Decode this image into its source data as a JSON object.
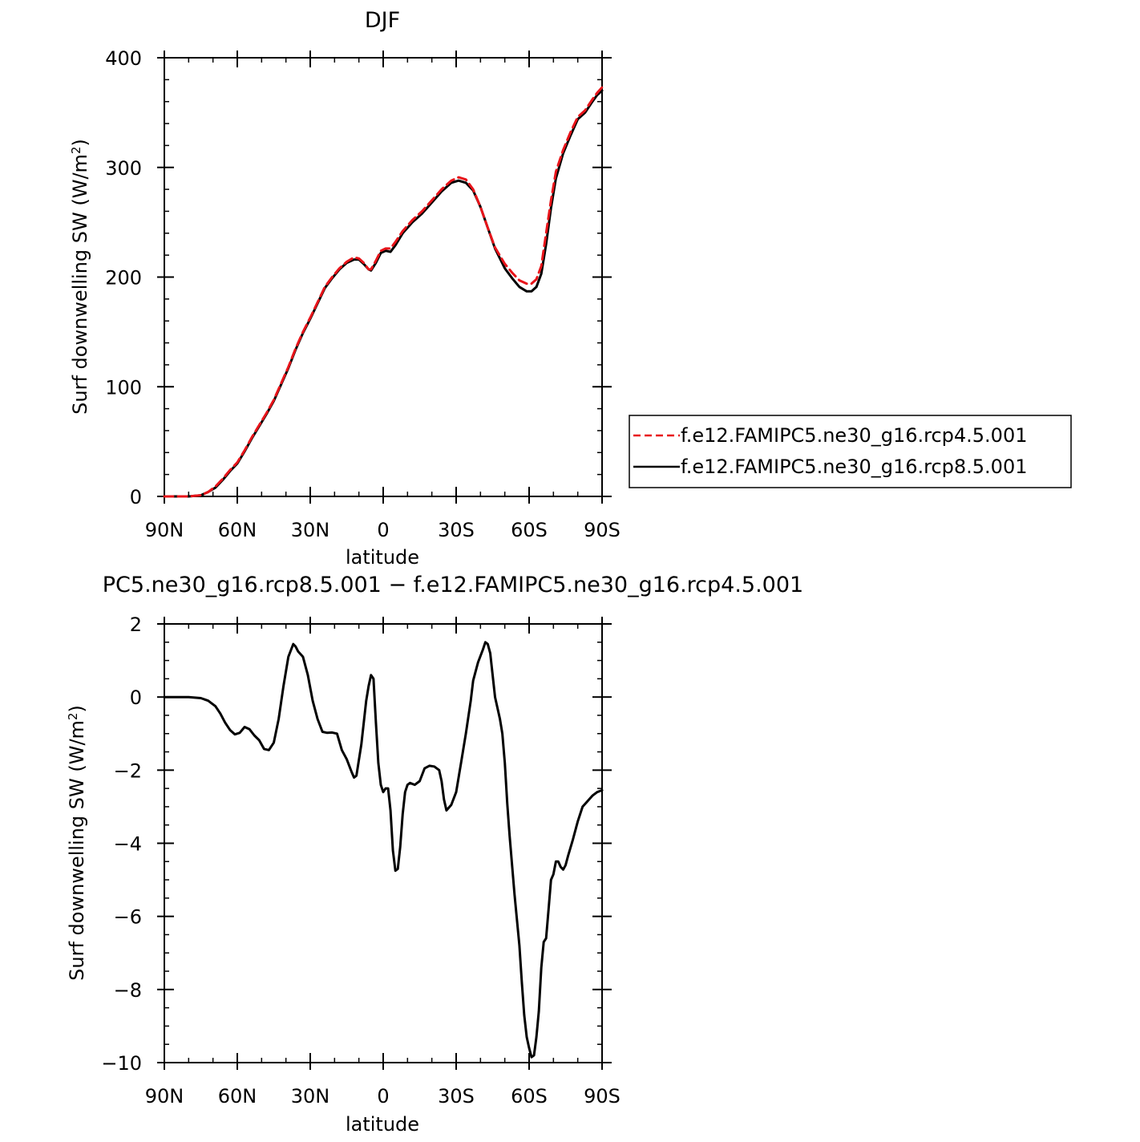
{
  "chart_data": [
    {
      "type": "line",
      "title": "DJF",
      "xlabel": "latitude",
      "ylabel": "Surf downwelling SW (W/m²)",
      "ylabel_prefix": "Surf downwelling SW (W/m",
      "ylabel_sup": "2",
      "ylabel_suffix": ")",
      "xlim": [
        90,
        -90
      ],
      "ylim": [
        0,
        400
      ],
      "xticks": [
        90,
        60,
        30,
        0,
        -30,
        -60,
        -90
      ],
      "xtick_labels": [
        "90N",
        "60N",
        "30N",
        "0",
        "30S",
        "60S",
        "90S"
      ],
      "yticks": [
        0,
        100,
        200,
        300,
        400
      ],
      "ytick_labels": [
        "0",
        "100",
        "200",
        "300",
        "400"
      ],
      "grid": false,
      "legend_position": "right",
      "series": [
        {
          "name": "f.e12.FAMIPC5.ne30_g16.rcp4.5.001",
          "color": "#e8141a",
          "dash": "dashed",
          "points": [
            [
              90,
              0
            ],
            [
              85,
              0
            ],
            [
              80,
              0
            ],
            [
              75,
              1
            ],
            [
              72,
              4
            ],
            [
              69,
              9
            ],
            [
              66,
              16
            ],
            [
              63,
              24
            ],
            [
              60,
              31
            ],
            [
              57,
              42
            ],
            [
              54,
              54
            ],
            [
              51,
              65
            ],
            [
              48,
              76
            ],
            [
              45,
              88
            ],
            [
              42,
              103
            ],
            [
              39,
              118
            ],
            [
              36,
              135
            ],
            [
              33,
              150
            ],
            [
              30,
              163
            ],
            [
              27,
              177
            ],
            [
              24,
              191
            ],
            [
              21,
              200
            ],
            [
              18,
              208
            ],
            [
              15,
              214
            ],
            [
              12,
              218
            ],
            [
              10,
              217
            ],
            [
              8,
              213
            ],
            [
              6,
              207
            ],
            [
              5,
              207
            ],
            [
              3,
              215
            ],
            [
              1,
              224
            ],
            [
              -1,
              226
            ],
            [
              -3,
              226
            ],
            [
              -5,
              232
            ],
            [
              -8,
              242
            ],
            [
              -12,
              252
            ],
            [
              -16,
              260
            ],
            [
              -20,
              270
            ],
            [
              -24,
              280
            ],
            [
              -28,
              288
            ],
            [
              -31,
              291
            ],
            [
              -34,
              289
            ],
            [
              -37,
              280
            ],
            [
              -40,
              264
            ],
            [
              -43,
              245
            ],
            [
              -46,
              227
            ],
            [
              -50,
              212
            ],
            [
              -53,
              204
            ],
            [
              -56,
              197
            ],
            [
              -59,
              194
            ],
            [
              -61,
              194
            ],
            [
              -63,
              198
            ],
            [
              -65,
              210
            ],
            [
              -67,
              240
            ],
            [
              -69,
              270
            ],
            [
              -71,
              296
            ],
            [
              -74,
              316
            ],
            [
              -77,
              332
            ],
            [
              -80,
              346
            ],
            [
              -83,
              352
            ],
            [
              -86,
              362
            ],
            [
              -88,
              368
            ],
            [
              -90,
              373
            ]
          ]
        },
        {
          "name": "f.e12.FAMIPC5.ne30_g16.rcp8.5.001",
          "color": "#000000",
          "dash": "solid",
          "points": [
            [
              90,
              0
            ],
            [
              85,
              0
            ],
            [
              80,
              0
            ],
            [
              75,
              1
            ],
            [
              72,
              4
            ],
            [
              69,
              8
            ],
            [
              66,
              15
            ],
            [
              63,
              23
            ],
            [
              60,
              30
            ],
            [
              57,
              41
            ],
            [
              54,
              53
            ],
            [
              51,
              64
            ],
            [
              48,
              75
            ],
            [
              45,
              87
            ],
            [
              42,
              102
            ],
            [
              39,
              117
            ],
            [
              36,
              134
            ],
            [
              33,
              149
            ],
            [
              30,
              162
            ],
            [
              27,
              176
            ],
            [
              24,
              190
            ],
            [
              21,
              199
            ],
            [
              18,
              207
            ],
            [
              15,
              213
            ],
            [
              12,
              216
            ],
            [
              10,
              216
            ],
            [
              8,
              212
            ],
            [
              6,
              207
            ],
            [
              5,
              206
            ],
            [
              3,
              213
            ],
            [
              1,
              222
            ],
            [
              -1,
              224
            ],
            [
              -3,
              223
            ],
            [
              -5,
              229
            ],
            [
              -8,
              240
            ],
            [
              -12,
              250
            ],
            [
              -16,
              258
            ],
            [
              -20,
              268
            ],
            [
              -24,
              278
            ],
            [
              -28,
              286
            ],
            [
              -31,
              288
            ],
            [
              -34,
              286
            ],
            [
              -37,
              279
            ],
            [
              -40,
              264
            ],
            [
              -43,
              245
            ],
            [
              -46,
              226
            ],
            [
              -50,
              208
            ],
            [
              -53,
              199
            ],
            [
              -56,
              191
            ],
            [
              -59,
              187
            ],
            [
              -61,
              187
            ],
            [
              -63,
              191
            ],
            [
              -65,
              203
            ],
            [
              -67,
              230
            ],
            [
              -69,
              263
            ],
            [
              -71,
              290
            ],
            [
              -74,
              313
            ],
            [
              -77,
              329
            ],
            [
              -80,
              344
            ],
            [
              -83,
              350
            ],
            [
              -86,
              360
            ],
            [
              -88,
              366
            ],
            [
              -90,
              370
            ]
          ]
        }
      ]
    },
    {
      "type": "line",
      "title": "PC5.ne30_g16.rcp8.5.001 − f.e12.FAMIPC5.ne30_g16.rcp4.5.001",
      "xlabel": "latitude",
      "ylabel": "Surf downwelling SW (W/m²)",
      "ylabel_prefix": "Surf downwelling SW (W/m",
      "ylabel_sup": "2",
      "ylabel_suffix": ")",
      "xlim": [
        90,
        -90
      ],
      "ylim": [
        -10,
        2
      ],
      "xticks": [
        90,
        60,
        30,
        0,
        -30,
        -60,
        -90
      ],
      "xtick_labels": [
        "90N",
        "60N",
        "30N",
        "0",
        "30S",
        "60S",
        "90S"
      ],
      "yticks": [
        -10,
        -8,
        -6,
        -4,
        -2,
        0,
        2
      ],
      "ytick_labels": [
        "−10",
        "−8",
        "−6",
        "−4",
        "−2",
        "0",
        "2"
      ],
      "grid": false,
      "series": [
        {
          "color": "#000000",
          "dash": "solid",
          "points": [
            [
              90,
              0
            ],
            [
              85,
              0
            ],
            [
              80,
              0
            ],
            [
              75,
              -0.03
            ],
            [
              72,
              -0.1
            ],
            [
              69,
              -0.25
            ],
            [
              67,
              -0.45
            ],
            [
              65,
              -0.7
            ],
            [
              63,
              -0.9
            ],
            [
              61,
              -1.02
            ],
            [
              59,
              -0.98
            ],
            [
              57,
              -0.82
            ],
            [
              55,
              -0.88
            ],
            [
              53,
              -1.05
            ],
            [
              51,
              -1.18
            ],
            [
              49,
              -1.42
            ],
            [
              47,
              -1.45
            ],
            [
              45,
              -1.25
            ],
            [
              43,
              -0.6
            ],
            [
              41,
              0.3
            ],
            [
              39,
              1.1
            ],
            [
              37,
              1.45
            ],
            [
              36,
              1.38
            ],
            [
              35,
              1.25
            ],
            [
              33,
              1.1
            ],
            [
              31,
              0.6
            ],
            [
              29,
              -0.1
            ],
            [
              27,
              -0.6
            ],
            [
              25,
              -0.95
            ],
            [
              23,
              -0.98
            ],
            [
              21,
              -0.97
            ],
            [
              19,
              -1.0
            ],
            [
              17,
              -1.45
            ],
            [
              15,
              -1.7
            ],
            [
              13,
              -2.05
            ],
            [
              12,
              -2.2
            ],
            [
              11,
              -2.15
            ],
            [
              9,
              -1.3
            ],
            [
              7,
              -0.1
            ],
            [
              6,
              0.3
            ],
            [
              5,
              0.6
            ],
            [
              4,
              0.5
            ],
            [
              3,
              -0.7
            ],
            [
              2,
              -1.8
            ],
            [
              1,
              -2.4
            ],
            [
              0,
              -2.6
            ],
            [
              -1,
              -2.5
            ],
            [
              -2,
              -2.5
            ],
            [
              -3,
              -3.1
            ],
            [
              -4,
              -4.2
            ],
            [
              -5,
              -4.75
            ],
            [
              -6,
              -4.7
            ],
            [
              -7,
              -4.1
            ],
            [
              -8,
              -3.2
            ],
            [
              -9,
              -2.6
            ],
            [
              -10,
              -2.4
            ],
            [
              -11,
              -2.35
            ],
            [
              -13,
              -2.4
            ],
            [
              -15,
              -2.3
            ],
            [
              -17,
              -1.95
            ],
            [
              -19,
              -1.88
            ],
            [
              -21,
              -1.9
            ],
            [
              -23,
              -2.0
            ],
            [
              -24,
              -2.3
            ],
            [
              -25,
              -2.8
            ],
            [
              -26,
              -3.1
            ],
            [
              -28,
              -2.95
            ],
            [
              -30,
              -2.6
            ],
            [
              -32,
              -1.8
            ],
            [
              -34,
              -1.0
            ],
            [
              -36,
              -0.1
            ],
            [
              -37,
              0.45
            ],
            [
              -39,
              0.95
            ],
            [
              -41,
              1.3
            ],
            [
              -42,
              1.5
            ],
            [
              -43,
              1.45
            ],
            [
              -44,
              1.2
            ],
            [
              -45,
              0.6
            ],
            [
              -46,
              0.0
            ],
            [
              -48,
              -0.6
            ],
            [
              -49,
              -1.0
            ],
            [
              -50,
              -1.8
            ],
            [
              -51,
              -2.9
            ],
            [
              -52,
              -3.8
            ],
            [
              -54,
              -5.4
            ],
            [
              -56,
              -6.8
            ],
            [
              -57,
              -7.8
            ],
            [
              -58,
              -8.7
            ],
            [
              -59,
              -9.3
            ],
            [
              -60,
              -9.6
            ],
            [
              -61,
              -9.85
            ],
            [
              -62,
              -9.8
            ],
            [
              -63,
              -9.3
            ],
            [
              -64,
              -8.6
            ],
            [
              -65,
              -7.4
            ],
            [
              -66,
              -6.7
            ],
            [
              -67,
              -6.6
            ],
            [
              -68,
              -5.8
            ],
            [
              -69,
              -5.0
            ],
            [
              -70,
              -4.85
            ],
            [
              -71,
              -4.5
            ],
            [
              -72,
              -4.5
            ],
            [
              -73,
              -4.65
            ],
            [
              -74,
              -4.72
            ],
            [
              -75,
              -4.6
            ],
            [
              -76,
              -4.35
            ],
            [
              -78,
              -3.9
            ],
            [
              -80,
              -3.4
            ],
            [
              -82,
              -3.0
            ],
            [
              -84,
              -2.85
            ],
            [
              -86,
              -2.7
            ],
            [
              -88,
              -2.6
            ],
            [
              -90,
              -2.55
            ]
          ]
        }
      ]
    }
  ]
}
